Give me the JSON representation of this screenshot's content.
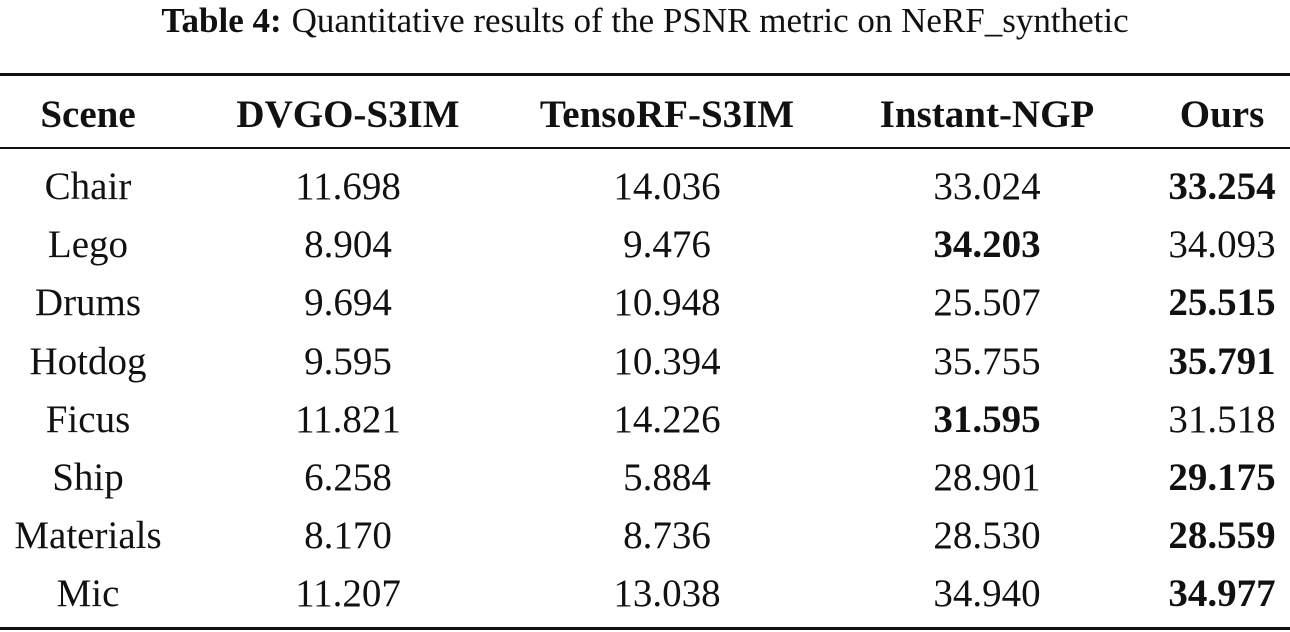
{
  "caption": {
    "label": "Table 4:",
    "text": "Quantitative results of the PSNR metric on NeRF_synthetic"
  },
  "table": {
    "header": [
      "Scene",
      "DVGO-S3IM",
      "TensoRF-S3IM",
      "Instant-NGP",
      "Ours"
    ],
    "rows": [
      [
        "Chair",
        "11.698",
        "14.036",
        "33.024",
        "33.254"
      ],
      [
        "Lego",
        "8.904",
        "9.476",
        "34.203",
        "34.093"
      ],
      [
        "Drums",
        "9.694",
        "10.948",
        "25.507",
        "25.515"
      ],
      [
        "Hotdog",
        "9.595",
        "10.394",
        "35.755",
        "35.791"
      ],
      [
        "Ficus",
        "11.821",
        "14.226",
        "31.595",
        "31.518"
      ],
      [
        "Ship",
        "6.258",
        "5.884",
        "28.901",
        "29.175"
      ],
      [
        "Materials",
        "8.170",
        "8.736",
        "28.530",
        "28.559"
      ],
      [
        "Mic",
        "11.207",
        "13.038",
        "34.940",
        "34.977"
      ]
    ],
    "bold_column": [
      4,
      3,
      4,
      4,
      3,
      4,
      4,
      4
    ]
  }
}
